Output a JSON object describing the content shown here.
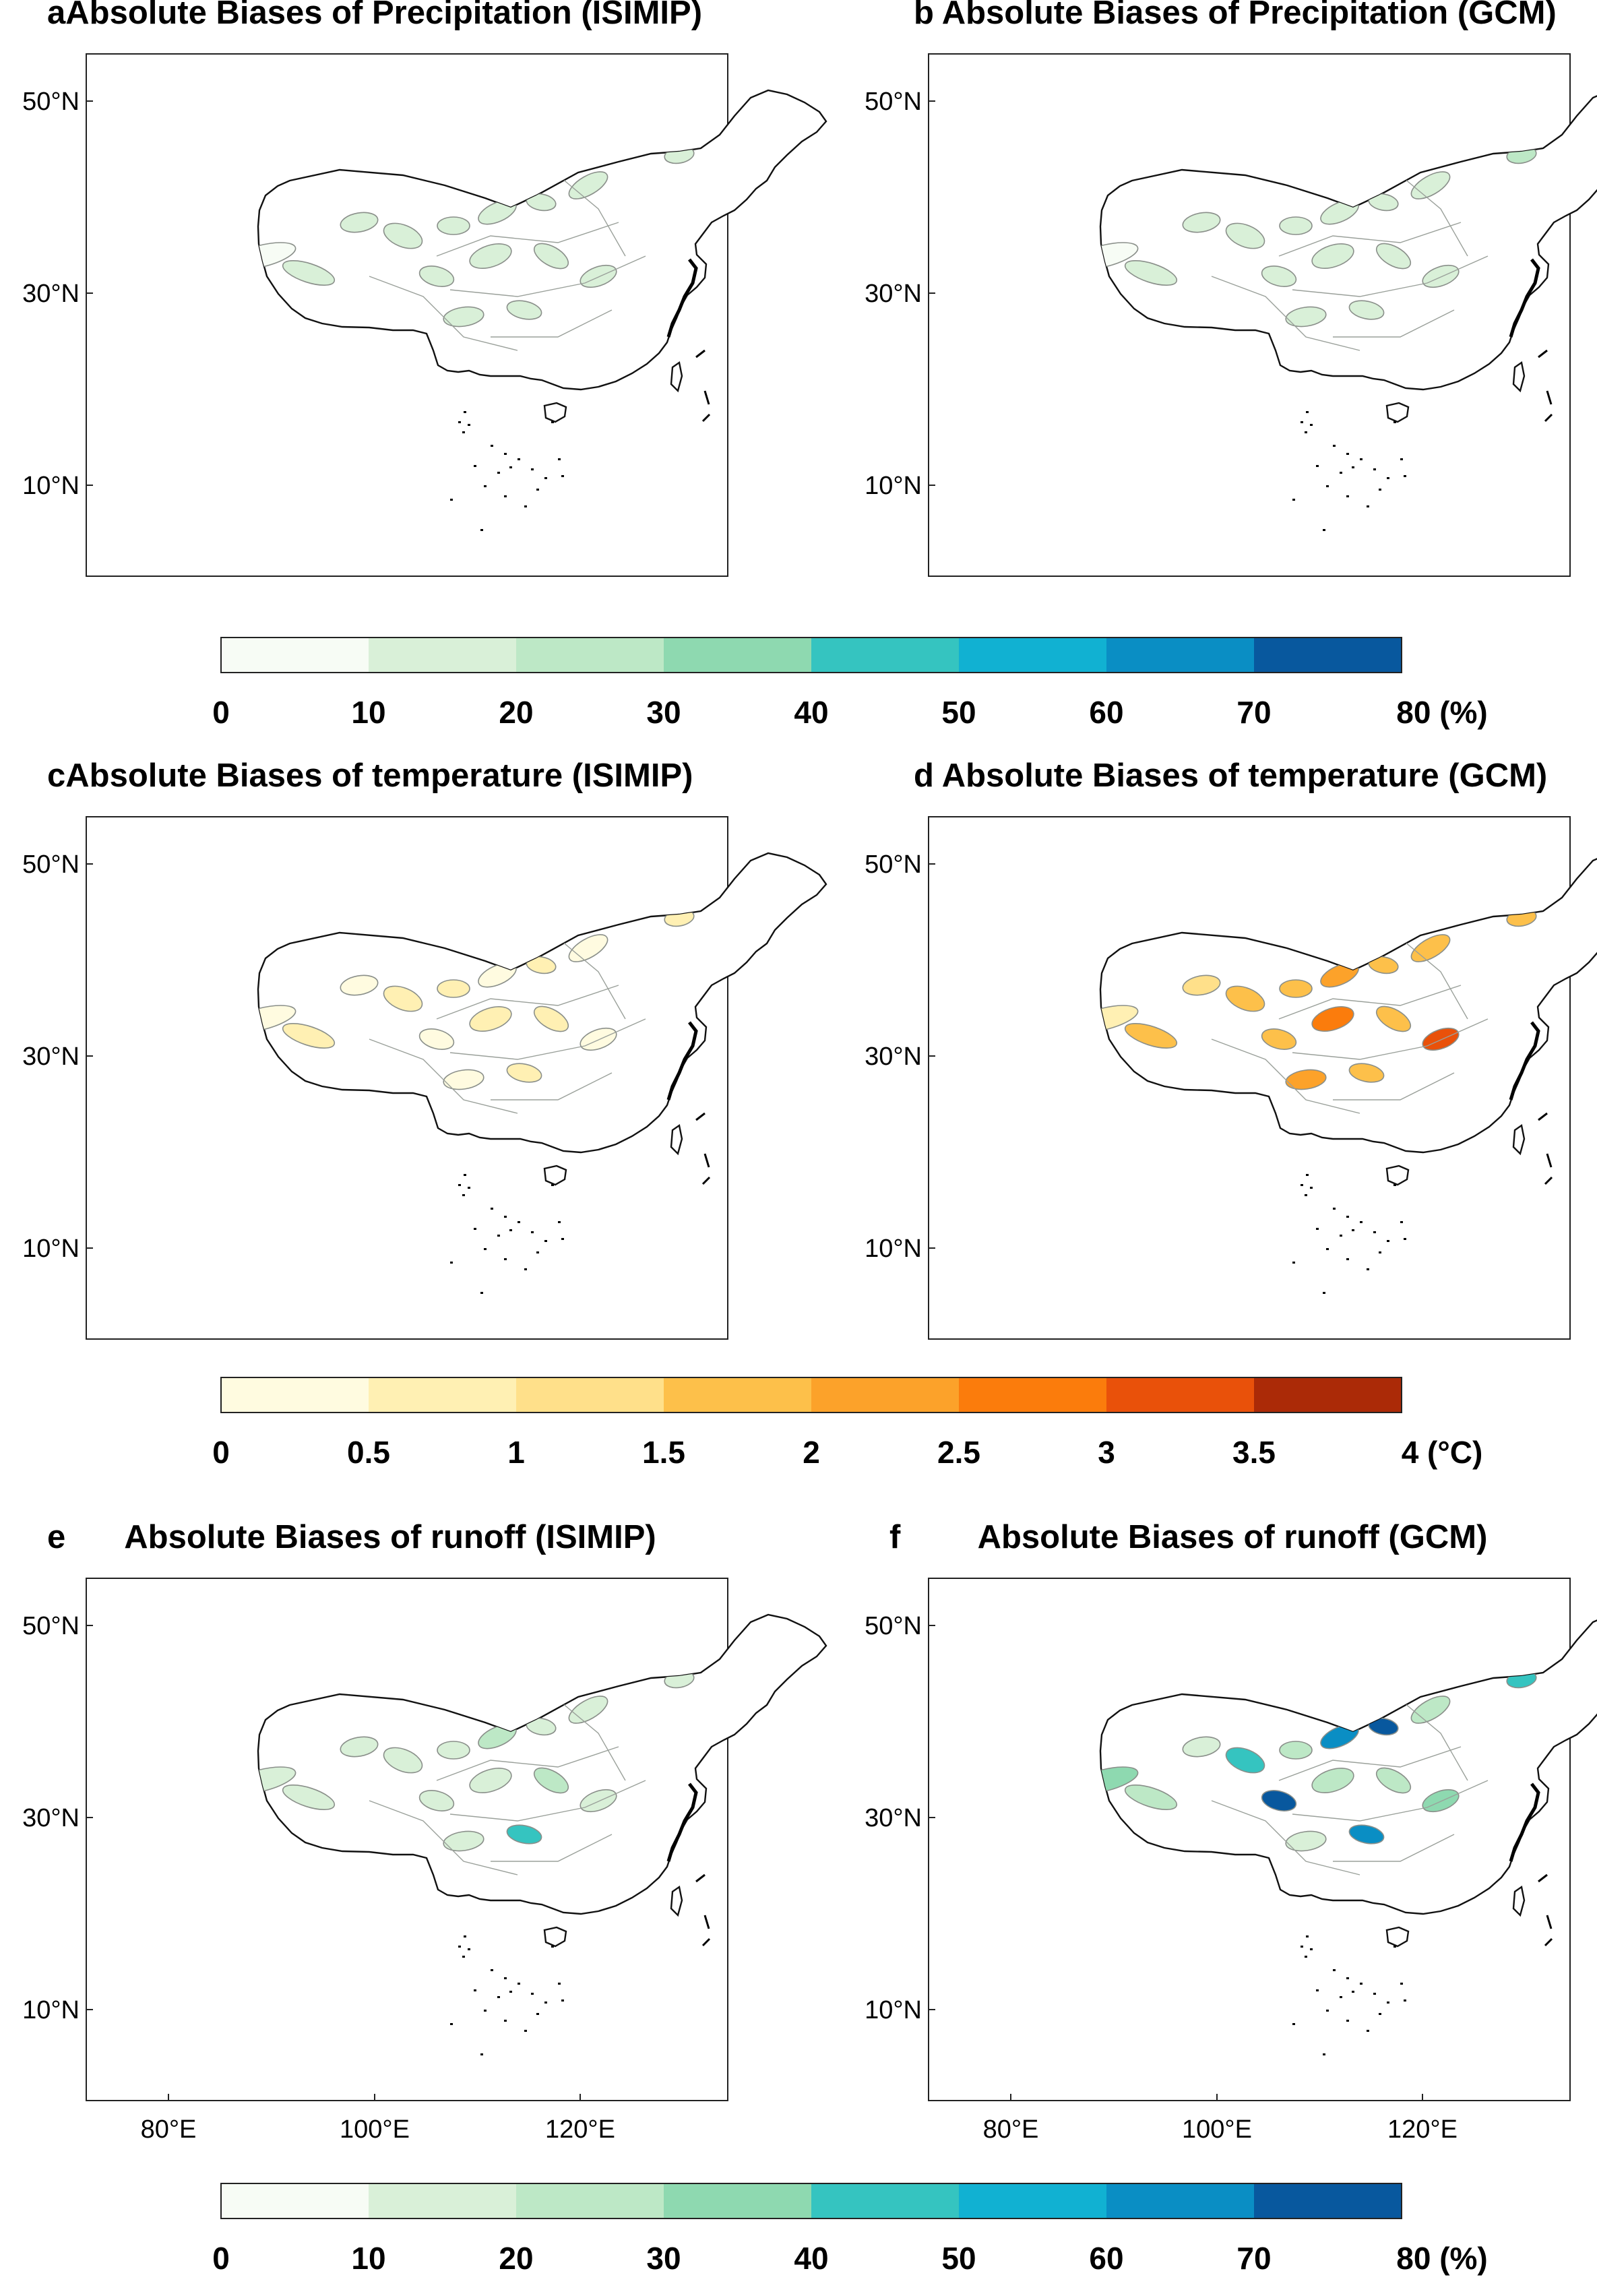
{
  "panels": [
    {
      "letter": "a",
      "title": "Absolute Biases of Precipitation (ISIMIP)",
      "variable": "precipitation",
      "source": "ISIMIP"
    },
    {
      "letter": "b",
      "title": "Absolute Biases of Precipitation (GCM)",
      "variable": "precipitation",
      "source": "GCM"
    },
    {
      "letter": "c",
      "title": "Absolute Biases of temperature (ISIMIP)",
      "variable": "temperature",
      "source": "ISIMIP"
    },
    {
      "letter": "d",
      "title": "Absolute Biases of temperature (GCM)",
      "variable": "temperature",
      "source": "GCM"
    },
    {
      "letter": "e",
      "title": "Absolute Biases of runoff (ISIMIP)",
      "variable": "runoff",
      "source": "ISIMIP"
    },
    {
      "letter": "f",
      "title": "Absolute Biases of runoff (GCM)",
      "variable": "runoff",
      "source": "GCM"
    }
  ],
  "lat_ticks": [
    "50°N",
    "30°N",
    "10°N"
  ],
  "lon_ticks": [
    "80°E",
    "100°E",
    "120°E"
  ],
  "colorbars": [
    {
      "name": "precipitation",
      "unit": "(%)",
      "ticks": [
        "0",
        "10",
        "20",
        "30",
        "40",
        "50",
        "60",
        "70",
        "80"
      ],
      "colors": [
        "#f7fcf5",
        "#d9f0d8",
        "#bde8c6",
        "#8ed9b0",
        "#35c4c0",
        "#11b1d2",
        "#0a8ec4",
        "#08589e"
      ]
    },
    {
      "name": "temperature",
      "unit": "(°C)",
      "ticks": [
        "0",
        "0.5",
        "1",
        "1.5",
        "2",
        "2.5",
        "3",
        "3.5",
        "4"
      ],
      "colors": [
        "#fffbe0",
        "#fff0b3",
        "#ffe08a",
        "#fdc04a",
        "#fca22a",
        "#fb7c0c",
        "#e9510a",
        "#ab2a07"
      ]
    },
    {
      "name": "runoff",
      "unit": "(%)",
      "ticks": [
        "0",
        "10",
        "20",
        "30",
        "40",
        "50",
        "60",
        "70",
        "80"
      ],
      "colors": [
        "#f7fcf5",
        "#d9f0d8",
        "#bde8c6",
        "#8ed9b0",
        "#35c4c0",
        "#11b1d2",
        "#0a8ec4",
        "#08589e"
      ]
    }
  ],
  "basin_fill_levels": {
    "a": [
      0,
      1,
      1,
      1,
      1,
      1,
      1,
      1,
      1,
      1,
      1,
      1,
      1,
      1,
      1,
      1
    ],
    "b": [
      0,
      1,
      1,
      1,
      1,
      1,
      1,
      1,
      1,
      2,
      1,
      1,
      1,
      1,
      1,
      1
    ],
    "c": [
      0,
      1,
      0,
      1,
      1,
      0,
      1,
      0,
      1,
      1,
      0,
      1,
      1,
      0,
      1,
      0
    ],
    "d": [
      1,
      3,
      2,
      3,
      3,
      4,
      3,
      3,
      2,
      3,
      3,
      5,
      3,
      4,
      3,
      6
    ],
    "e": [
      1,
      1,
      1,
      1,
      1,
      2,
      1,
      1,
      1,
      1,
      1,
      1,
      2,
      1,
      4,
      1
    ],
    "f": [
      3,
      2,
      1,
      4,
      2,
      6,
      7,
      2,
      2,
      4,
      7,
      2,
      2,
      1,
      6,
      3
    ]
  }
}
